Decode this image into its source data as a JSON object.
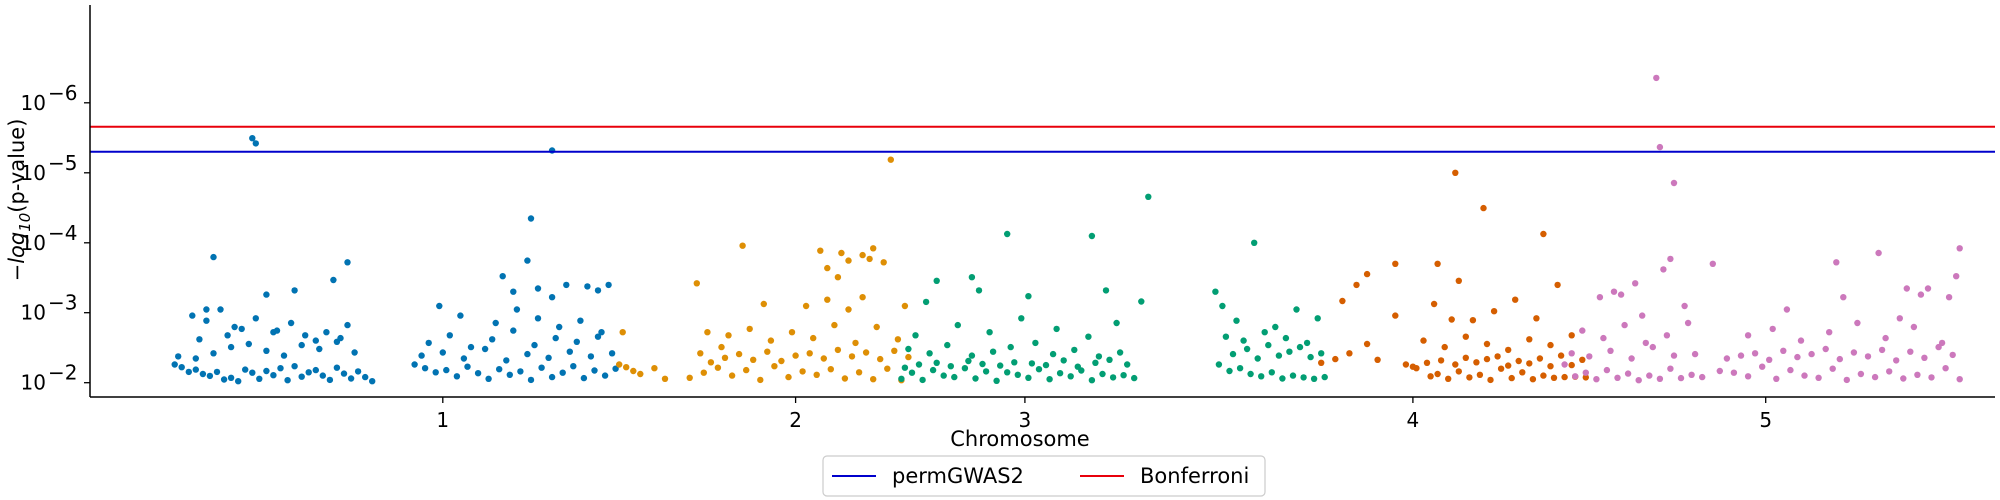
{
  "chart_data": {
    "type": "scatter",
    "title": "",
    "xlabel": "Chromosome",
    "ylabel_prefix": "−log",
    "ylabel_sub": "10",
    "ylabel_suffix": "(p-value)",
    "y_scale": "log",
    "y_inverted": true,
    "ylim": [
      0.016,
      4e-08
    ],
    "y_ticks": [
      {
        "value": 1e-06,
        "base": "10",
        "exp": "−6"
      },
      {
        "value": 1e-05,
        "base": "10",
        "exp": "−5"
      },
      {
        "value": 0.0001,
        "base": "10",
        "exp": "−4"
      },
      {
        "value": 0.001,
        "base": "10",
        "exp": "−3"
      },
      {
        "value": 0.01,
        "base": "10",
        "exp": "−2"
      }
    ],
    "x_range": [
      0,
      5.4
    ],
    "x_ticks": [
      {
        "pos": 1.0,
        "label": "1"
      },
      {
        "pos": 2.0,
        "label": "2"
      },
      {
        "pos": 2.65,
        "label": "3"
      },
      {
        "pos": 3.75,
        "label": "4"
      },
      {
        "pos": 4.75,
        "label": "5"
      }
    ],
    "grid": false,
    "legend_placement": "bottom-center",
    "thresholds": [
      {
        "name": "permGWAS2",
        "value": 5e-06,
        "color": "#0000cc"
      },
      {
        "name": "Bonferroni",
        "value": 2.2e-06,
        "color": "#e8000b"
      }
    ],
    "series": [
      {
        "chromosome": "1",
        "color": "#0173b2",
        "x": [
          0.24,
          0.26,
          0.28,
          0.3,
          0.32,
          0.34,
          0.36,
          0.38,
          0.4,
          0.42,
          0.44,
          0.46,
          0.48,
          0.5,
          0.52,
          0.54,
          0.56,
          0.58,
          0.6,
          0.62,
          0.64,
          0.66,
          0.68,
          0.7,
          0.72,
          0.74,
          0.76,
          0.78,
          0.8,
          0.25,
          0.3,
          0.35,
          0.4,
          0.45,
          0.5,
          0.55,
          0.6,
          0.65,
          0.7,
          0.75,
          0.29,
          0.33,
          0.37,
          0.41,
          0.47,
          0.53,
          0.57,
          0.61,
          0.67,
          0.73,
          0.35,
          0.46,
          0.47,
          0.33,
          0.5,
          0.58,
          0.69,
          0.73,
          0.31,
          0.39,
          0.43,
          0.52,
          0.64,
          0.71
        ],
        "y": [
          0.0055,
          0.006,
          0.007,
          0.0065,
          0.0075,
          0.008,
          0.007,
          0.009,
          0.0085,
          0.0095,
          0.0065,
          0.0072,
          0.0088,
          0.0068,
          0.0078,
          0.0062,
          0.0092,
          0.0058,
          0.0082,
          0.0071,
          0.0066,
          0.0079,
          0.0091,
          0.0061,
          0.0074,
          0.0087,
          0.0069,
          0.0083,
          0.0095,
          0.0042,
          0.0045,
          0.0038,
          0.0031,
          0.0028,
          0.0035,
          0.0041,
          0.0029,
          0.0033,
          0.0026,
          0.0037,
          0.0011,
          0.0013,
          0.0009,
          0.0016,
          0.0012,
          0.0018,
          0.0014,
          0.0021,
          0.0019,
          0.0015,
          0.00016,
          3.2e-06,
          3.8e-06,
          0.0009,
          0.00055,
          0.00048,
          0.00034,
          0.00019,
          0.0024,
          0.0021,
          0.0017,
          0.0019,
          0.0025,
          0.0023
        ]
      },
      {
        "chromosome": "1b",
        "color": "#0173b2",
        "x": [
          0.92,
          0.95,
          0.98,
          1.01,
          1.04,
          1.07,
          1.1,
          1.13,
          1.16,
          1.19,
          1.22,
          1.25,
          1.28,
          1.31,
          1.34,
          1.37,
          1.4,
          1.43,
          1.46,
          1.49,
          0.94,
          1.0,
          1.06,
          1.12,
          1.18,
          1.24,
          1.3,
          1.36,
          1.42,
          1.48,
          0.96,
          1.02,
          1.08,
          1.14,
          1.2,
          1.26,
          1.32,
          1.38,
          1.44,
          0.99,
          1.05,
          1.15,
          1.21,
          1.27,
          1.33,
          1.39,
          1.45,
          1.17,
          1.2,
          1.31,
          1.24,
          1.25,
          1.27,
          1.35,
          1.41,
          1.44,
          1.47
        ],
        "y": [
          0.0055,
          0.0062,
          0.0071,
          0.0066,
          0.0081,
          0.0059,
          0.0073,
          0.0088,
          0.0064,
          0.0077,
          0.0069,
          0.0091,
          0.0061,
          0.0083,
          0.0072,
          0.0058,
          0.0086,
          0.0067,
          0.0079,
          0.0063,
          0.0041,
          0.0037,
          0.0045,
          0.0033,
          0.0048,
          0.0039,
          0.0044,
          0.0036,
          0.0042,
          0.0038,
          0.0027,
          0.0021,
          0.0031,
          0.0024,
          0.0018,
          0.0029,
          0.0023,
          0.0026,
          0.0022,
          0.0008,
          0.0011,
          0.0014,
          0.0009,
          0.0012,
          0.0016,
          0.0013,
          0.0019,
          0.0003,
          0.0005,
          0.0006,
          0.00018,
          4.5e-05,
          0.00045,
          0.0004,
          0.00042,
          0.00048,
          0.0004
        ]
      },
      {
        "chromosome": "1c",
        "color": "#0173b2",
        "x": [
          1.31
        ],
        "y": [
          4.8e-06
        ]
      },
      {
        "chromosome": "2",
        "color": "#de8f05",
        "x": [
          1.5,
          1.52,
          1.54,
          1.56,
          1.6,
          1.63,
          1.7,
          1.74,
          1.78,
          1.82,
          1.86,
          1.9,
          1.94,
          1.98,
          2.02,
          2.06,
          2.1,
          2.14,
          2.18,
          2.22,
          2.26,
          2.3,
          1.76,
          1.8,
          1.84,
          1.88,
          1.92,
          1.96,
          2.0,
          2.04,
          2.08,
          2.12,
          2.16,
          2.2,
          2.24,
          2.28,
          2.32,
          1.81,
          1.87,
          1.93,
          1.99,
          2.05,
          2.11,
          2.17,
          2.23,
          2.29,
          1.73,
          1.79,
          1.91,
          2.03,
          2.09,
          2.15,
          2.19,
          2.25,
          1.85,
          2.07,
          2.13,
          2.21,
          2.27,
          1.51
        ],
        "y": [
          0.0055,
          0.006,
          0.0068,
          0.0075,
          0.0062,
          0.0088,
          0.0085,
          0.0072,
          0.0061,
          0.0079,
          0.0066,
          0.0091,
          0.0058,
          0.0083,
          0.0069,
          0.0077,
          0.0064,
          0.0087,
          0.0071,
          0.0089,
          0.0063,
          0.0092,
          0.0051,
          0.0044,
          0.0039,
          0.0047,
          0.0036,
          0.0049,
          0.0041,
          0.0038,
          0.0045,
          0.0034,
          0.0042,
          0.0037,
          0.0046,
          0.0035,
          0.0043,
          0.0021,
          0.0017,
          0.0025,
          0.0019,
          0.0023,
          0.0015,
          0.0027,
          0.0016,
          0.0024,
          0.0038,
          0.0031,
          0.00075,
          0.0008,
          0.00065,
          0.0009,
          0.0006,
          0.00019,
          0.00011,
          0.00013,
          0.00014,
          0.00017,
          6.5e-06,
          0.0019
        ]
      },
      {
        "chromosome": "2b",
        "color": "#de8f05",
        "x": [
          2.09,
          2.12,
          2.15,
          2.19,
          2.22,
          2.31,
          1.72,
          1.75
        ],
        "y": [
          0.00023,
          0.00031,
          0.00018,
          0.00015,
          0.00012,
          0.0008,
          0.00038,
          0.0019
        ]
      },
      {
        "chromosome": "3",
        "color": "#029e73",
        "x": [
          2.3,
          2.33,
          2.36,
          2.39,
          2.42,
          2.45,
          2.48,
          2.51,
          2.54,
          2.57,
          2.6,
          2.63,
          2.66,
          2.69,
          2.72,
          2.75,
          2.78,
          2.81,
          2.84,
          2.87,
          2.9,
          2.93,
          2.96,
          2.31,
          2.35,
          2.4,
          2.44,
          2.49,
          2.53,
          2.58,
          2.62,
          2.67,
          2.71,
          2.76,
          2.8,
          2.85,
          2.89,
          2.94,
          2.32,
          2.38,
          2.43,
          2.5,
          2.56,
          2.61,
          2.68,
          2.73,
          2.79,
          2.86,
          2.92,
          2.34,
          2.46,
          2.55,
          2.64,
          2.74,
          2.83,
          2.91,
          2.37,
          2.52,
          2.66,
          2.98,
          3.0,
          2.88,
          2.6,
          2.5,
          2.4
        ],
        "y": [
          0.0088,
          0.0072,
          0.0091,
          0.0066,
          0.0079,
          0.0083,
          0.0062,
          0.0087,
          0.0069,
          0.0094,
          0.0071,
          0.0077,
          0.0085,
          0.0064,
          0.0089,
          0.0073,
          0.0081,
          0.0067,
          0.0092,
          0.0075,
          0.0084,
          0.0078,
          0.0086,
          0.0061,
          0.0055,
          0.0052,
          0.0058,
          0.0049,
          0.0054,
          0.0057,
          0.0051,
          0.0053,
          0.0056,
          0.0048,
          0.0059,
          0.0052,
          0.0047,
          0.0055,
          0.0033,
          0.0038,
          0.0029,
          0.0041,
          0.0036,
          0.0031,
          0.0027,
          0.0039,
          0.0034,
          0.0042,
          0.0037,
          0.0021,
          0.0015,
          0.0019,
          0.0012,
          0.0017,
          0.0022,
          0.0014,
          0.0007,
          0.00048,
          0.00058,
          0.00069,
          2.2e-05,
          0.00048,
          7.5e-05,
          0.00031,
          0.00035
        ]
      },
      {
        "chromosome": "3b",
        "color": "#029e73",
        "x": [
          2.84
        ],
        "y": [
          8e-05
        ]
      },
      {
        "chromosome": "3c",
        "color": "#029e73",
        "x": [
          3.2,
          3.23,
          3.26,
          3.29,
          3.32,
          3.35,
          3.38,
          3.41,
          3.44,
          3.47,
          3.5,
          3.24,
          3.28,
          3.31,
          3.34,
          3.37,
          3.4,
          3.43,
          3.46,
          3.49,
          3.22,
          3.27,
          3.33,
          3.39,
          3.45,
          3.25,
          3.36,
          3.42,
          3.48,
          3.21,
          3.19,
          3.3
        ],
        "y": [
          0.0055,
          0.0068,
          0.0062,
          0.0075,
          0.0081,
          0.0071,
          0.0087,
          0.0079,
          0.0084,
          0.0088,
          0.0083,
          0.0039,
          0.0033,
          0.0045,
          0.0029,
          0.0041,
          0.0036,
          0.0031,
          0.0043,
          0.0038,
          0.0022,
          0.0025,
          0.0019,
          0.0023,
          0.0027,
          0.0013,
          0.0016,
          0.0009,
          0.0012,
          0.0008,
          0.0005,
          0.0001
        ]
      },
      {
        "chromosome": "4",
        "color": "#d55e00",
        "x": [
          3.49,
          3.53,
          3.57,
          3.62,
          3.65,
          3.7,
          3.73,
          3.76,
          3.8,
          3.82,
          3.85,
          3.88,
          3.91,
          3.94,
          3.97,
          4.0,
          4.03,
          4.06,
          4.09,
          4.12,
          4.15,
          4.18,
          4.21,
          4.24,
          3.75,
          3.79,
          3.83,
          3.87,
          3.9,
          3.93,
          3.96,
          3.99,
          4.02,
          4.05,
          4.08,
          4.11,
          4.14,
          4.17,
          4.2,
          4.23,
          3.78,
          3.84,
          3.9,
          3.96,
          4.02,
          4.08,
          4.14,
          4.2,
          3.81,
          3.86,
          3.92,
          3.98,
          4.04,
          4.1,
          4.16,
          3.55,
          3.59,
          3.62,
          3.7,
          3.87,
          3.88,
          3.95,
          4.12
        ],
        "y": [
          0.0052,
          0.0046,
          0.0038,
          0.0028,
          0.0047,
          0.0011,
          0.0055,
          0.0062,
          0.0081,
          0.0075,
          0.0088,
          0.0069,
          0.0084,
          0.0077,
          0.0091,
          0.0063,
          0.0086,
          0.0071,
          0.0089,
          0.0079,
          0.0085,
          0.0083,
          0.0082,
          0.0084,
          0.0059,
          0.0052,
          0.0048,
          0.0055,
          0.0044,
          0.0051,
          0.0046,
          0.0042,
          0.0057,
          0.0049,
          0.0053,
          0.0045,
          0.0058,
          0.0041,
          0.0056,
          0.0047,
          0.0025,
          0.0031,
          0.0022,
          0.0028,
          0.0034,
          0.0024,
          0.0029,
          0.0021,
          0.00075,
          0.00125,
          0.00128,
          0.00095,
          0.00065,
          0.0012,
          0.0004,
          0.00068,
          0.0004,
          0.00028,
          0.0002,
          1e-05,
          0.00035,
          3.2e-05,
          7.5e-05
        ]
      },
      {
        "chromosome": "4b",
        "color": "#d55e00",
        "x": [
          3.82
        ],
        "y": [
          0.0002
        ]
      },
      {
        "chromosome": "5",
        "color": "#cc78bc",
        "x": [
          4.18,
          4.21,
          4.24,
          4.27,
          4.3,
          4.33,
          4.36,
          4.39,
          4.42,
          4.45,
          4.48,
          4.51,
          4.54,
          4.57,
          4.2,
          4.25,
          4.31,
          4.37,
          4.43,
          4.49,
          4.55,
          4.23,
          4.29,
          4.35,
          4.41,
          4.47,
          4.53,
          4.28,
          4.4,
          4.52,
          4.34,
          4.46,
          4.44,
          4.45,
          4.49,
          4.38,
          4.48,
          4.6,
          4.32
        ],
        "y": [
          0.0055,
          0.0081,
          0.0072,
          0.0089,
          0.0066,
          0.0085,
          0.0074,
          0.0092,
          0.0079,
          0.0088,
          0.0063,
          0.0086,
          0.0077,
          0.0083,
          0.0038,
          0.0042,
          0.0035,
          0.0045,
          0.0031,
          0.0041,
          0.0039,
          0.0018,
          0.0023,
          0.0015,
          0.0027,
          0.0021,
          0.0014,
          0.0006,
          0.0011,
          0.0008,
          0.00055,
          0.00024,
          4.4e-07,
          4.3e-06,
          1.4e-05,
          0.00038,
          0.00017,
          0.0002,
          0.0005
        ]
      },
      {
        "chromosome": "5b",
        "color": "#cc78bc",
        "x": [
          4.62,
          4.66,
          4.7,
          4.74,
          4.78,
          4.82,
          4.86,
          4.9,
          4.94,
          4.98,
          5.02,
          5.06,
          5.1,
          5.14,
          5.18,
          5.22,
          5.26,
          5.3,
          4.64,
          4.68,
          4.72,
          4.76,
          4.8,
          4.84,
          4.88,
          4.92,
          4.96,
          5.0,
          5.04,
          5.08,
          5.12,
          5.16,
          5.2,
          5.24,
          5.28,
          4.7,
          4.77,
          4.85,
          4.93,
          5.01,
          5.09,
          5.17,
          5.25,
          4.81,
          4.97,
          5.13,
          5.21,
          5.27,
          5.3,
          4.95,
          5.07,
          5.15,
          5.19,
          5.29
        ],
        "y": [
          0.0068,
          0.0072,
          0.0081,
          0.0059,
          0.0088,
          0.0066,
          0.0079,
          0.0085,
          0.0063,
          0.0091,
          0.0075,
          0.0083,
          0.0069,
          0.0087,
          0.0077,
          0.0084,
          0.0062,
          0.0089,
          0.0045,
          0.0041,
          0.0038,
          0.0047,
          0.0035,
          0.0043,
          0.0039,
          0.0033,
          0.0046,
          0.0037,
          0.0042,
          0.0034,
          0.0048,
          0.0036,
          0.0044,
          0.0031,
          0.004,
          0.0021,
          0.0017,
          0.0025,
          0.0019,
          0.0014,
          0.0023,
          0.0016,
          0.0027,
          0.0009,
          0.0006,
          0.0012,
          0.00045,
          0.0006,
          0.00012,
          0.00019,
          0.00014,
          0.00045,
          0.00055,
          0.0003
        ]
      }
    ]
  }
}
